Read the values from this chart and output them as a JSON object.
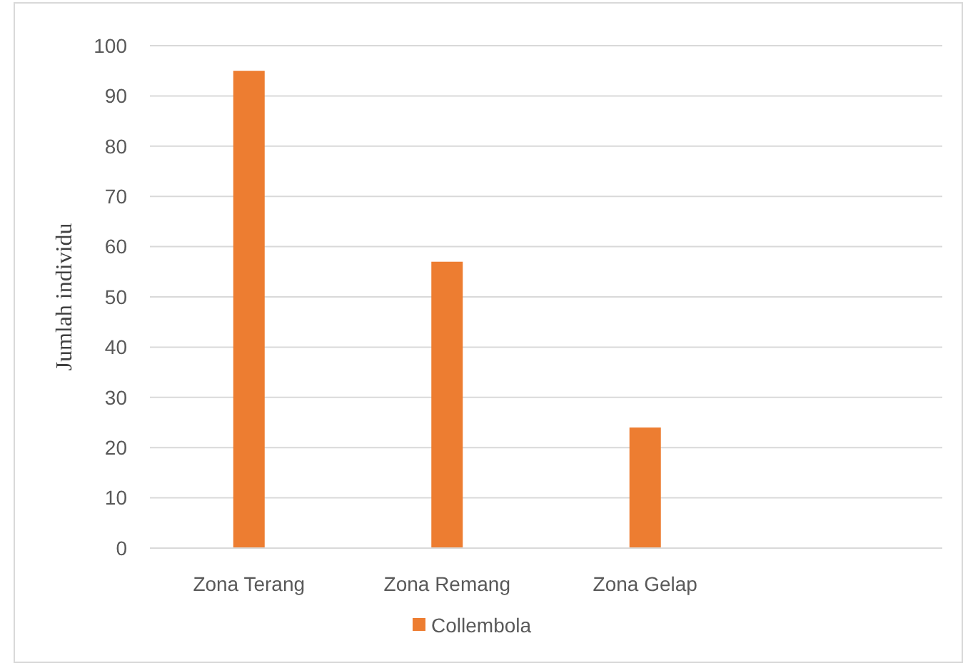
{
  "chart_data": {
    "type": "bar",
    "ylabel": "Jumlah individu",
    "categories": [
      "Zona Terang",
      "Zona Remang",
      "Zona Gelap",
      null
    ],
    "series": [
      {
        "name": "Collembola",
        "color": "#ed7d31",
        "values": [
          95,
          57,
          24,
          null
        ]
      }
    ],
    "ylim": [
      0,
      100
    ],
    "yticks": [
      0,
      10,
      20,
      30,
      40,
      50,
      60,
      70,
      80,
      90,
      100
    ],
    "grid": "y",
    "legend": "bottom"
  }
}
